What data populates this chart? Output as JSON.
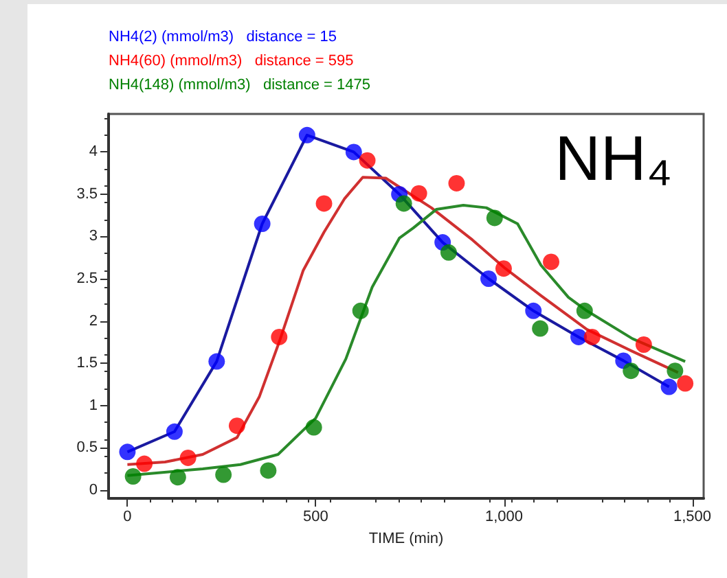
{
  "chart_data": {
    "type": "scatter",
    "xlabel": "TIME (min)",
    "annotations": [
      "NH₄"
    ],
    "legend": "top left",
    "xlim": [
      -50,
      1530
    ],
    "ylim": [
      -0.1,
      4.45
    ],
    "xticks": [
      0,
      500,
      {
        "value": 1000,
        "label": "1,000"
      },
      {
        "value": 1500,
        "label": "1,500"
      }
    ],
    "yticks": [
      0,
      0.5,
      1,
      1.5,
      2,
      2.5,
      3,
      3.5,
      4
    ],
    "series": [
      {
        "name": "NH4(2) (mmol/m3)   distance = 15",
        "marker": "circle",
        "color": "#0000ff",
        "x": [
          0,
          125,
          237,
          358,
          477,
          601,
          722,
          837,
          959,
          1078,
          1198,
          1317,
          1438
        ],
        "values": [
          0.45,
          0.69,
          1.52,
          3.15,
          4.2,
          4.0,
          3.5,
          2.93,
          2.5,
          2.12,
          1.81,
          1.53,
          1.22
        ]
      },
      {
        "name": "NH4(60) (mmol/m3)   distance = 595",
        "marker": "circle",
        "color": "#ff0000",
        "x": [
          45,
          161,
          291,
          403,
          522,
          637,
          774,
          874,
          999,
          1125,
          1234,
          1371,
          1481
        ],
        "values": [
          0.31,
          0.38,
          0.76,
          1.81,
          3.39,
          3.9,
          3.51,
          3.63,
          2.62,
          2.7,
          1.81,
          1.72,
          1.26
        ]
      },
      {
        "name": "NH4(148) (mmol/m3)   distance = 1475",
        "marker": "circle",
        "color": "#008000",
        "x": [
          15,
          134,
          255,
          374,
          495,
          619,
          734,
          853,
          975,
          1096,
          1214,
          1337,
          1454
        ],
        "values": [
          0.16,
          0.15,
          0.18,
          0.23,
          0.74,
          2.12,
          3.39,
          2.81,
          3.22,
          1.91,
          2.12,
          1.41,
          1.41
        ]
      },
      {
        "type": "line",
        "marker": "none",
        "color": "#1a1aa0",
        "x": [
          0,
          125,
          237,
          358,
          477,
          601,
          722,
          837,
          959,
          1078,
          1198,
          1317,
          1438
        ],
        "values": [
          0.45,
          0.69,
          1.52,
          3.15,
          4.2,
          4.0,
          3.5,
          2.93,
          2.5,
          2.12,
          1.81,
          1.53,
          1.22
        ]
      },
      {
        "type": "line",
        "marker": "none",
        "color": "#d03030",
        "x": [
          0,
          100,
          200,
          291,
          350,
          403,
          467,
          522,
          577,
          625,
          686,
          734,
          807,
          916,
          1001,
          1098,
          1220,
          1341,
          1462
        ],
        "values": [
          0.3,
          0.33,
          0.42,
          0.62,
          1.1,
          1.75,
          2.6,
          3.05,
          3.45,
          3.7,
          3.69,
          3.55,
          3.34,
          2.96,
          2.63,
          2.3,
          1.9,
          1.64,
          1.39
        ]
      },
      {
        "type": "line",
        "marker": "none",
        "color": "#2a8a2a",
        "x": [
          0,
          200,
          300,
          400,
          500,
          580,
          650,
          722,
          759,
          820,
          892,
          953,
          1036,
          1098,
          1171,
          1220,
          1341,
          1481
        ],
        "values": [
          0.17,
          0.25,
          0.3,
          0.42,
          0.85,
          1.55,
          2.4,
          2.98,
          3.1,
          3.32,
          3.37,
          3.34,
          3.15,
          2.66,
          2.28,
          2.12,
          1.79,
          1.52
        ]
      }
    ]
  }
}
